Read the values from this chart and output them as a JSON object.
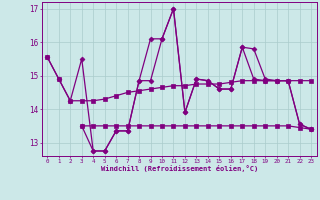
{
  "xlabel": "Windchill (Refroidissement éolien,°C)",
  "background_color": "#cce8e8",
  "line_color": "#800080",
  "grid_color": "#aacccc",
  "xlim": [
    -0.5,
    23.5
  ],
  "ylim": [
    12.6,
    17.2
  ],
  "yticks": [
    13,
    14,
    15,
    16,
    17
  ],
  "xticks": [
    0,
    1,
    2,
    3,
    4,
    5,
    6,
    7,
    8,
    9,
    10,
    11,
    12,
    13,
    14,
    15,
    16,
    17,
    18,
    19,
    20,
    21,
    22,
    23
  ],
  "series_upper_smooth_x": [
    0,
    1,
    2,
    3,
    4,
    5,
    6,
    7,
    8,
    9,
    10,
    11,
    12,
    13,
    14,
    15,
    16,
    17,
    18,
    19,
    20,
    21,
    22,
    23
  ],
  "series_upper_smooth_y": [
    15.55,
    14.9,
    14.25,
    14.25,
    14.25,
    14.3,
    14.4,
    14.5,
    14.55,
    14.6,
    14.65,
    14.7,
    14.7,
    14.75,
    14.75,
    14.75,
    14.8,
    14.85,
    14.85,
    14.85,
    14.85,
    14.85,
    14.85,
    14.85
  ],
  "series_upper_jagged_x": [
    0,
    1,
    2,
    3,
    4,
    5,
    6,
    7,
    8,
    9,
    10,
    11,
    12,
    13,
    14,
    15,
    16,
    17,
    18,
    19,
    20,
    21,
    22,
    23
  ],
  "series_upper_jagged_y": [
    15.55,
    14.9,
    14.25,
    15.5,
    12.75,
    12.75,
    13.35,
    13.35,
    14.85,
    16.1,
    16.1,
    17.0,
    13.9,
    14.9,
    14.85,
    14.6,
    14.6,
    15.85,
    15.8,
    14.9,
    14.85,
    14.85,
    13.55,
    13.4
  ],
  "series_lower_smooth_x": [
    3,
    4,
    5,
    6,
    7,
    8,
    9,
    10,
    11,
    12,
    13,
    14,
    15,
    16,
    17,
    18,
    19,
    20,
    21,
    22,
    23
  ],
  "series_lower_smooth_y": [
    13.5,
    13.5,
    13.5,
    13.5,
    13.5,
    13.5,
    13.5,
    13.5,
    13.5,
    13.5,
    13.5,
    13.5,
    13.5,
    13.5,
    13.5,
    13.5,
    13.5,
    13.5,
    13.5,
    13.45,
    13.4
  ],
  "series_lower_jagged_x": [
    3,
    4,
    5,
    6,
    7,
    8,
    9,
    10,
    11,
    12,
    13,
    14,
    15,
    16,
    17,
    18,
    19,
    20,
    21,
    22,
    23
  ],
  "series_lower_jagged_y": [
    13.5,
    12.75,
    12.75,
    13.35,
    13.35,
    14.85,
    14.85,
    16.1,
    17.0,
    13.9,
    14.9,
    14.85,
    14.6,
    14.6,
    15.85,
    14.9,
    14.85,
    14.85,
    14.85,
    13.55,
    13.4
  ]
}
